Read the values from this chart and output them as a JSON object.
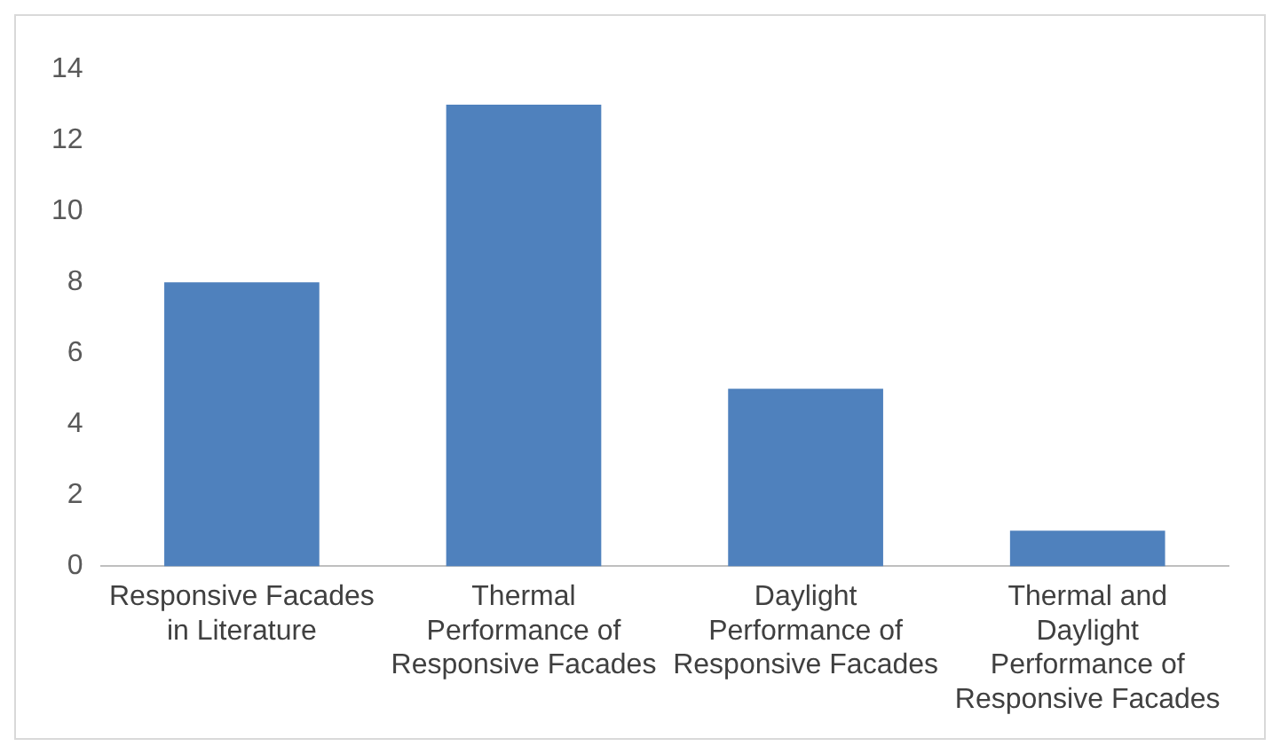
{
  "chart_data": {
    "type": "bar",
    "categories": [
      "Responsive Facades in Literature",
      "Thermal Performance of Responsive Facades",
      "Daylight Performance of Responsive Facades",
      "Thermal and Daylight Performance of Responsive Facades"
    ],
    "values": [
      8,
      13,
      5,
      1
    ],
    "color": "#4f81bd",
    "ylim": [
      0,
      14
    ],
    "yticks": [
      0,
      2,
      4,
      6,
      8,
      10,
      12,
      14
    ],
    "grid": false,
    "legend": false
  }
}
